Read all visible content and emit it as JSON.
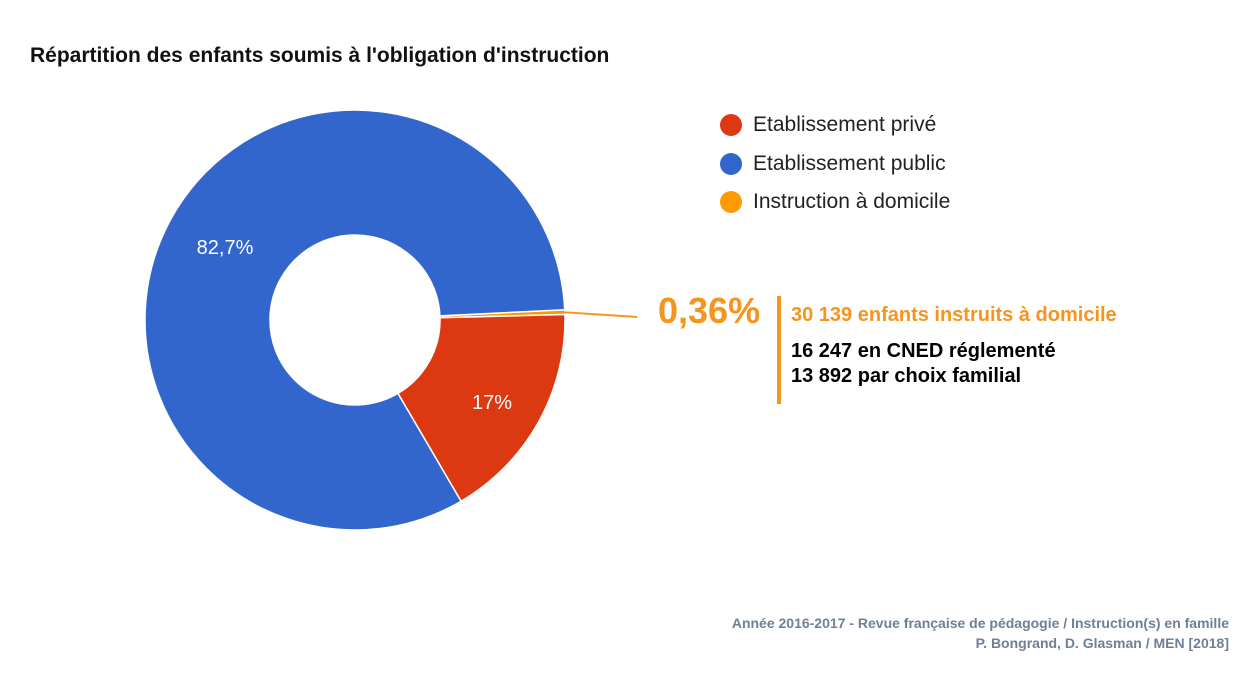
{
  "chart_data": {
    "type": "pie",
    "title": "Répartition des enfants soumis à l'obligation d'instruction",
    "labels": [
      "Etablissement privé",
      "Etablissement public",
      "Instruction à domicile"
    ],
    "values": [
      17,
      82.7,
      0.36
    ],
    "value_labels": [
      "17%",
      "82,7%",
      "0,36%"
    ],
    "colors": [
      "#DC3912",
      "#3366CC",
      "#FF9900"
    ],
    "legend_position": "right"
  },
  "callout": {
    "percent": "0,36%",
    "headline": "30 139 enfants instruits à domicile",
    "lines": [
      "16 247 en CNED réglementé",
      "13 892 par choix familial"
    ],
    "color": "#F7941D"
  },
  "source": {
    "line1": "Année 2016-2017 - Revue française de pédagogie / Instruction(s) en famille",
    "line2": "P. Bongrand, D. Glasman / MEN [2018]"
  }
}
